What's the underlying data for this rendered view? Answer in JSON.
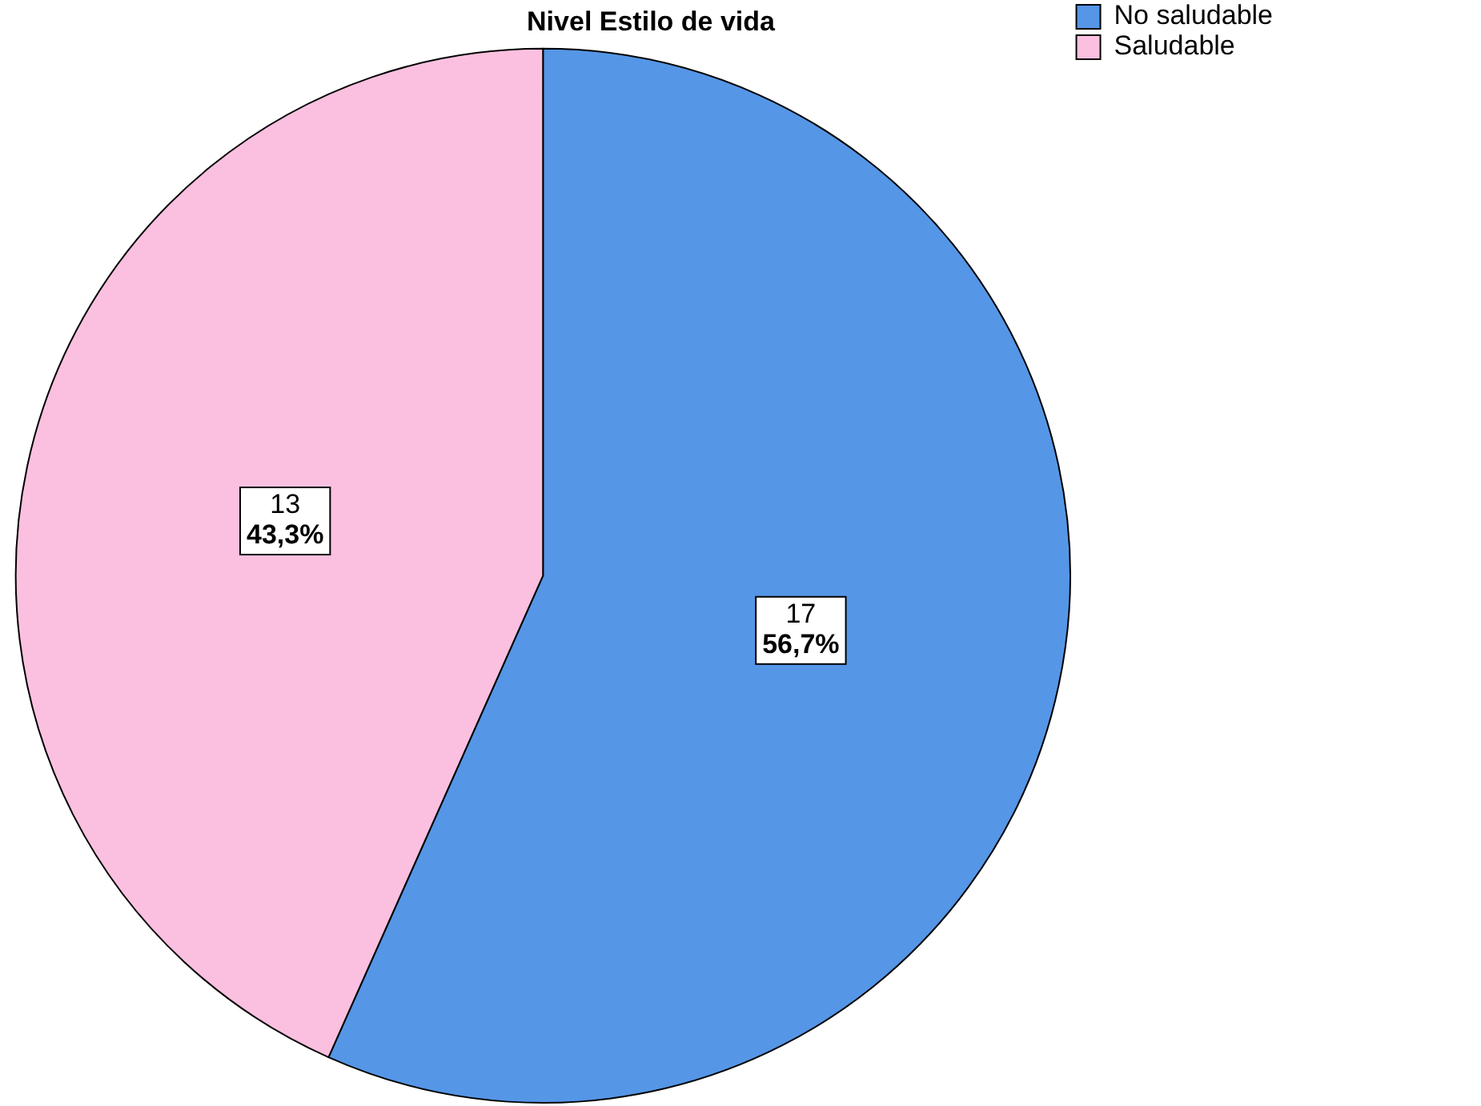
{
  "chart_data": {
    "type": "pie",
    "title": "Nivel Estilo de vida",
    "categories": [
      "No saludable",
      "Saludable"
    ],
    "values": [
      17,
      13
    ],
    "colors": [
      "#5596e6",
      "#fbc0df"
    ],
    "value_labels": [
      "17\n56,7%",
      "13\n43,3%"
    ],
    "legend": "top right"
  }
}
